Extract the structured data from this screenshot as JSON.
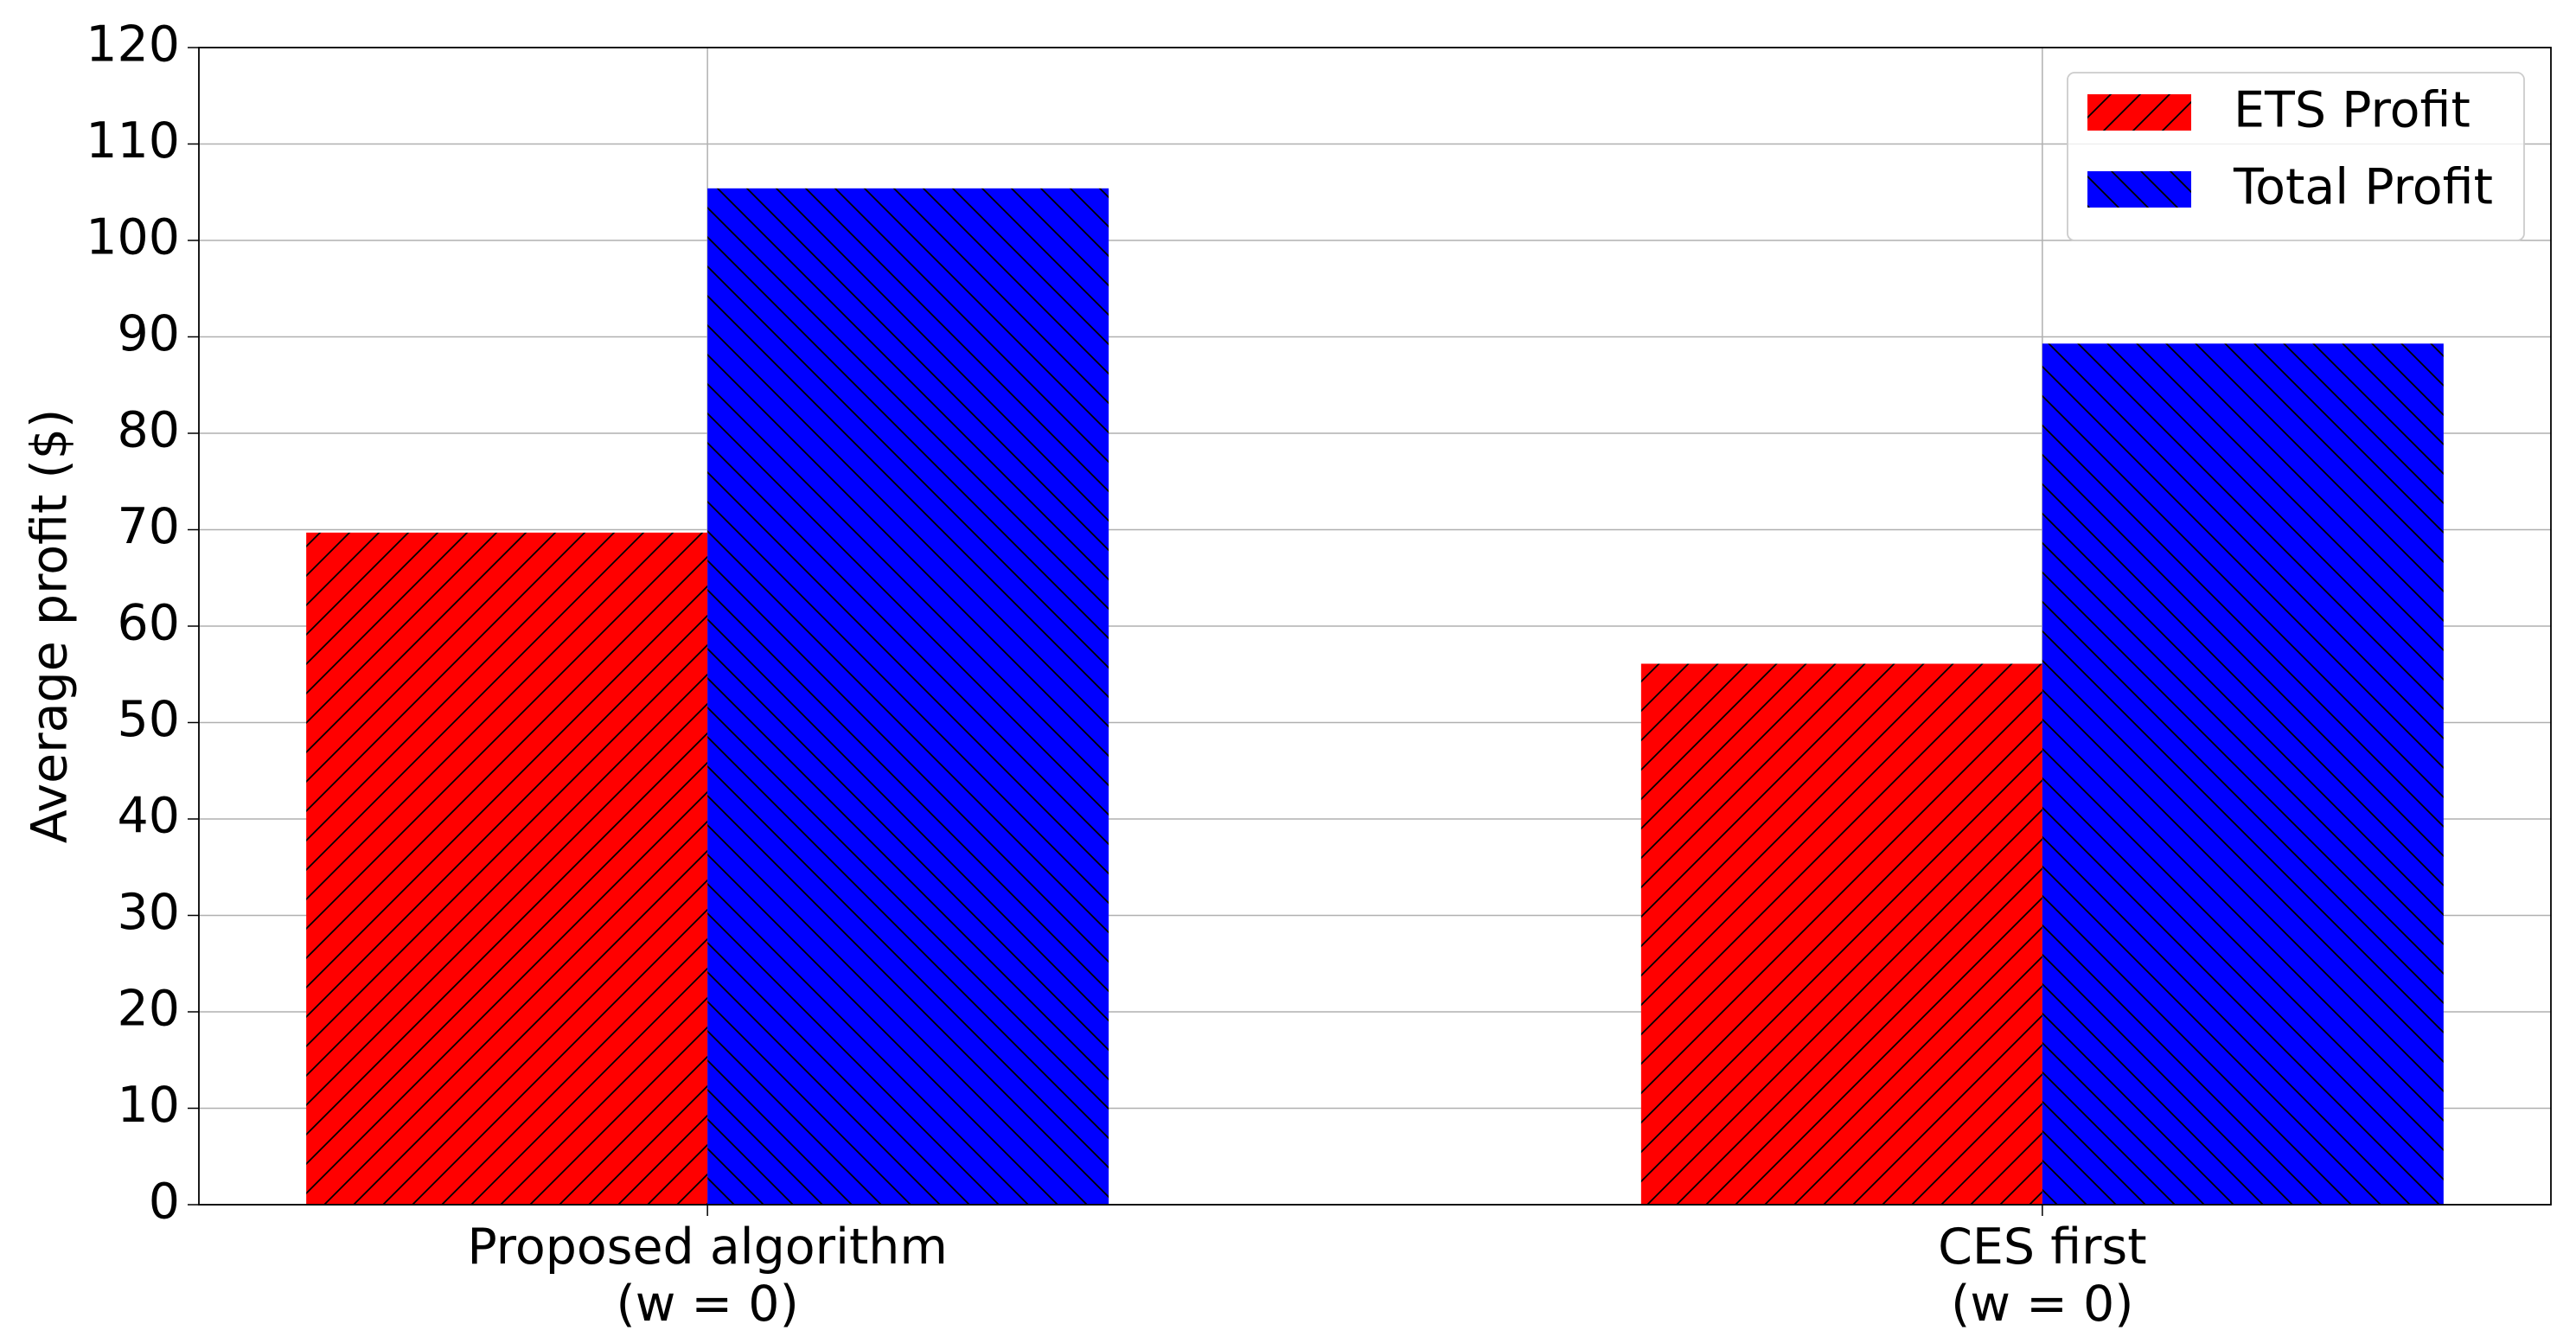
{
  "chart_data": {
    "type": "bar",
    "categories": [
      "Proposed algorithm\n(w = 0)",
      "CES first\n(w = 0)"
    ],
    "series": [
      {
        "name": "ETS Profit",
        "color": "#ff0000",
        "hatch": "/",
        "values": [
          69.7,
          56.1
        ]
      },
      {
        "name": "Total Profit",
        "color": "#0000ff",
        "hatch": "\\",
        "values": [
          105.4,
          89.3
        ]
      }
    ],
    "y_label": "Average profit ($)",
    "ylim": [
      0,
      120
    ],
    "yticks": [
      0,
      10,
      20,
      30,
      40,
      50,
      60,
      70,
      80,
      90,
      100,
      110,
      120
    ],
    "grid": true,
    "legend": "upper right"
  }
}
